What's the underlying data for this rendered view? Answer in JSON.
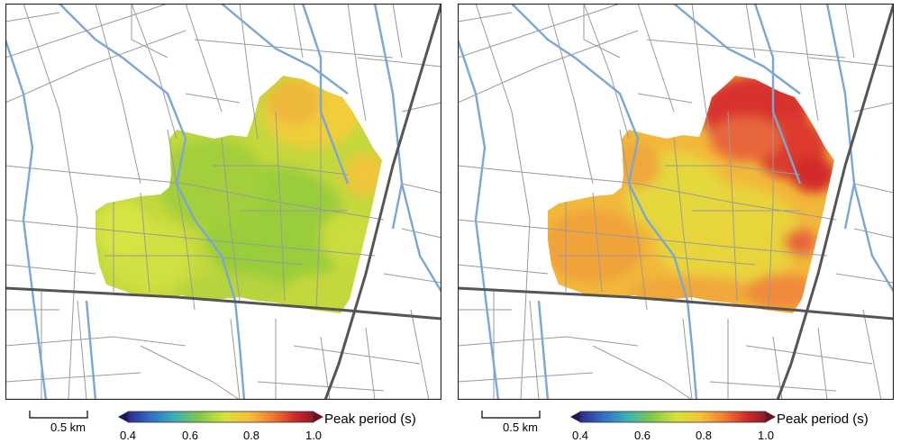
{
  "panels": [
    {
      "id": "left",
      "scale_label": "0.5 km",
      "colorbar_title": "Peak period (s)",
      "colorbar_ticks": [
        "0.4",
        "0.6",
        "0.8",
        "1.0"
      ],
      "colorbar_range": [
        0.4,
        1.0
      ],
      "field_colors": [
        "#9acd3a",
        "#b4d43c",
        "#d4e240",
        "#ece63c",
        "#f2cd3a"
      ]
    },
    {
      "id": "right",
      "scale_label": "0.5 km",
      "colorbar_title": "Peak period (s)",
      "colorbar_ticks": [
        "0.4",
        "0.6",
        "0.8",
        "1.0"
      ],
      "colorbar_range": [
        0.4,
        1.0
      ],
      "field_colors": [
        "#e8d43a",
        "#f2b63a",
        "#f0963a",
        "#e8663a",
        "#d8302e"
      ]
    }
  ],
  "colors": {
    "river": "#7aa7d6",
    "street": "#9a9a9a",
    "major_road": "#555555",
    "frame": "#222222"
  },
  "colormap": [
    "#2c2a8c",
    "#2f6fc4",
    "#3ab0b8",
    "#7cc84a",
    "#d8e23a",
    "#f5c23a",
    "#ee7a33",
    "#cf2a2a",
    "#8c1a2a"
  ]
}
